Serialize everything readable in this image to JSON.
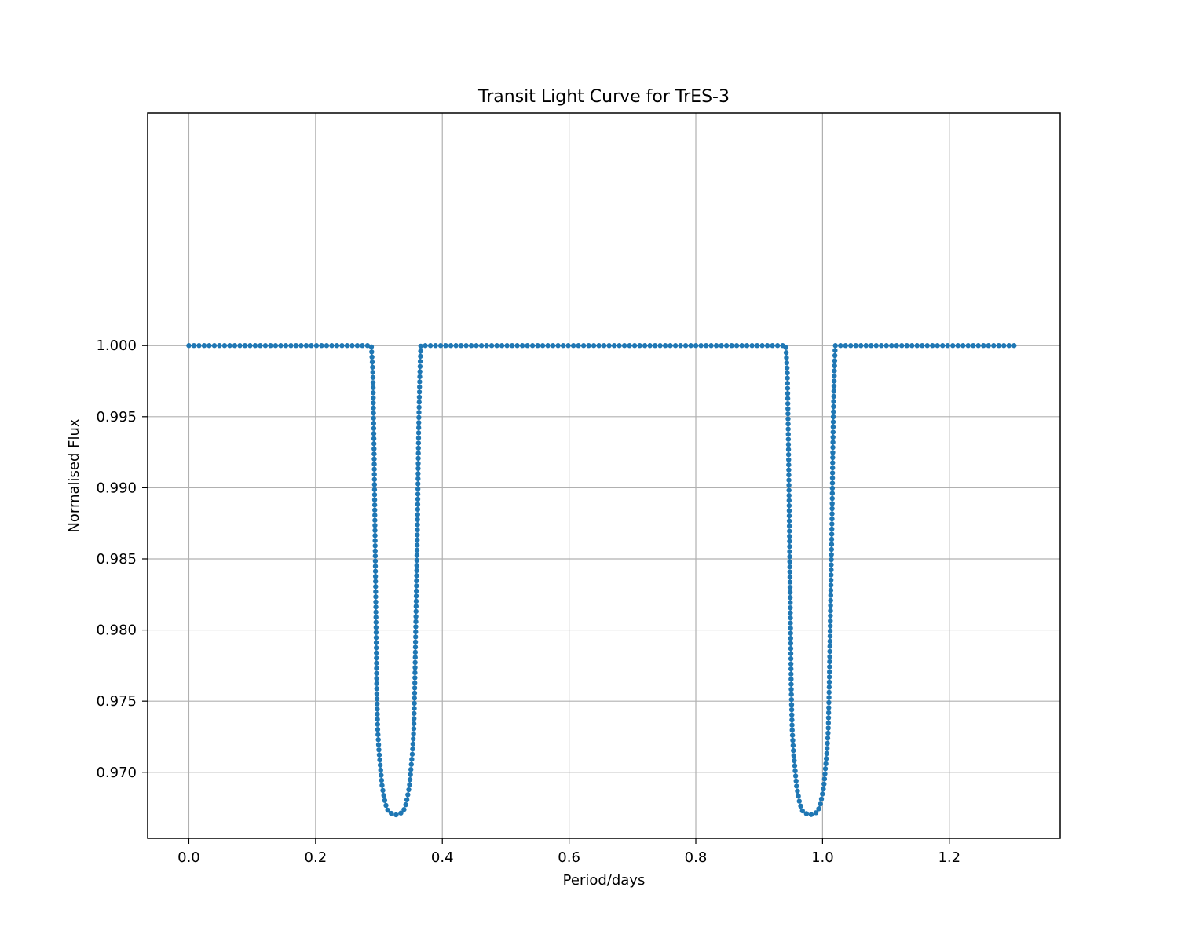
{
  "chart_data": {
    "type": "line",
    "title": "Transit Light Curve for TrES-3",
    "xlabel": "Period/days",
    "ylabel": "Normalised Flux",
    "xlim": [
      -0.065,
      1.375
    ],
    "ylim": [
      0.96535,
      1.01635
    ],
    "xticks": [
      0.0,
      0.2,
      0.4,
      0.6,
      0.8,
      1.0,
      1.2
    ],
    "xtick_labels": [
      "0.0",
      "0.2",
      "0.4",
      "0.6",
      "0.8",
      "1.0",
      "1.2"
    ],
    "yticks": [
      0.97,
      0.975,
      0.98,
      0.985,
      0.99,
      0.995,
      1.0
    ],
    "ytick_labels": [
      "0.970",
      "0.975",
      "0.980",
      "0.985",
      "0.990",
      "0.995",
      "1.000"
    ],
    "grid": true,
    "line_style": "dashed",
    "marker": "circle",
    "colors": {
      "series": "#1f77b4",
      "grid": "#b0b0b0",
      "axes": "#000000"
    },
    "series": [
      {
        "x": [
          0.0,
          0.05,
          0.1,
          0.15,
          0.2,
          0.25,
          0.288,
          0.2905,
          0.2915,
          0.2925,
          0.2935,
          0.2945,
          0.2955,
          0.2965,
          0.298,
          0.3,
          0.305,
          0.31,
          0.315,
          0.32,
          0.3265,
          0.333,
          0.338,
          0.343,
          0.348,
          0.353,
          0.355,
          0.3565,
          0.358,
          0.3595,
          0.361,
          0.362,
          0.363,
          0.3645,
          0.366,
          0.4,
          0.5,
          0.6,
          0.7,
          0.8,
          0.9,
          0.942,
          0.9445,
          0.9455,
          0.9465,
          0.9475,
          0.9485,
          0.9495,
          0.9505,
          0.952,
          0.954,
          0.959,
          0.964,
          0.969,
          0.974,
          0.9805,
          0.987,
          0.992,
          0.997,
          1.002,
          1.007,
          1.009,
          1.0105,
          1.012,
          1.0135,
          1.015,
          1.016,
          1.017,
          1.0185,
          1.02,
          1.1,
          1.2,
          1.3,
          1.306
        ],
        "y": [
          1.0,
          1.0,
          1.0,
          1.0,
          1.0,
          1.0,
          1.0,
          0.998,
          0.995,
          0.992,
          0.988,
          0.984,
          0.98,
          0.976,
          0.973,
          0.9715,
          0.969,
          0.9678,
          0.9672,
          0.9671,
          0.967,
          0.9671,
          0.9672,
          0.9678,
          0.969,
          0.9715,
          0.973,
          0.976,
          0.98,
          0.984,
          0.988,
          0.992,
          0.995,
          0.998,
          1.0,
          1.0,
          1.0,
          1.0,
          1.0,
          1.0,
          1.0,
          1.0,
          0.998,
          0.995,
          0.992,
          0.988,
          0.984,
          0.98,
          0.976,
          0.973,
          0.9715,
          0.969,
          0.9678,
          0.9672,
          0.9671,
          0.967,
          0.9671,
          0.9672,
          0.9678,
          0.969,
          0.9715,
          0.973,
          0.976,
          0.98,
          0.984,
          0.988,
          0.992,
          0.995,
          0.998,
          1.0,
          1.0,
          1.0,
          1.0,
          1.0
        ]
      }
    ]
  }
}
